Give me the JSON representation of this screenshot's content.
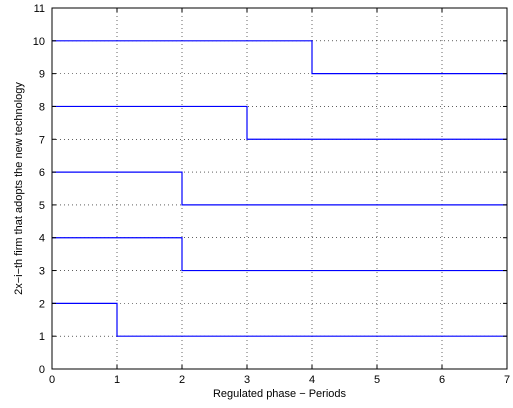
{
  "chart_data": {
    "type": "line",
    "title": "",
    "xlabel": "Regulated phase − Periods",
    "ylabel": "2x−i−th firm that adopts the new technology",
    "xlim": [
      0,
      7
    ],
    "ylim": [
      0,
      11
    ],
    "xticks": [
      0,
      1,
      2,
      3,
      4,
      5,
      6,
      7
    ],
    "yticks": [
      0,
      1,
      2,
      3,
      4,
      5,
      6,
      7,
      8,
      9,
      10,
      11
    ],
    "grid": true,
    "line_color": "#0000ff",
    "series": [
      {
        "steps": [
          [
            0,
            2
          ],
          [
            1,
            2
          ],
          [
            1,
            1
          ],
          [
            7,
            1
          ]
        ]
      },
      {
        "steps": [
          [
            0,
            4
          ],
          [
            2,
            4
          ],
          [
            2,
            3
          ],
          [
            7,
            3
          ]
        ]
      },
      {
        "steps": [
          [
            0,
            6
          ],
          [
            2,
            6
          ],
          [
            2,
            5
          ],
          [
            7,
            5
          ]
        ]
      },
      {
        "steps": [
          [
            0,
            8
          ],
          [
            3,
            8
          ],
          [
            3,
            7
          ],
          [
            7,
            7
          ]
        ]
      },
      {
        "steps": [
          [
            0,
            10
          ],
          [
            4,
            10
          ],
          [
            4,
            9
          ],
          [
            7,
            9
          ]
        ]
      }
    ]
  }
}
